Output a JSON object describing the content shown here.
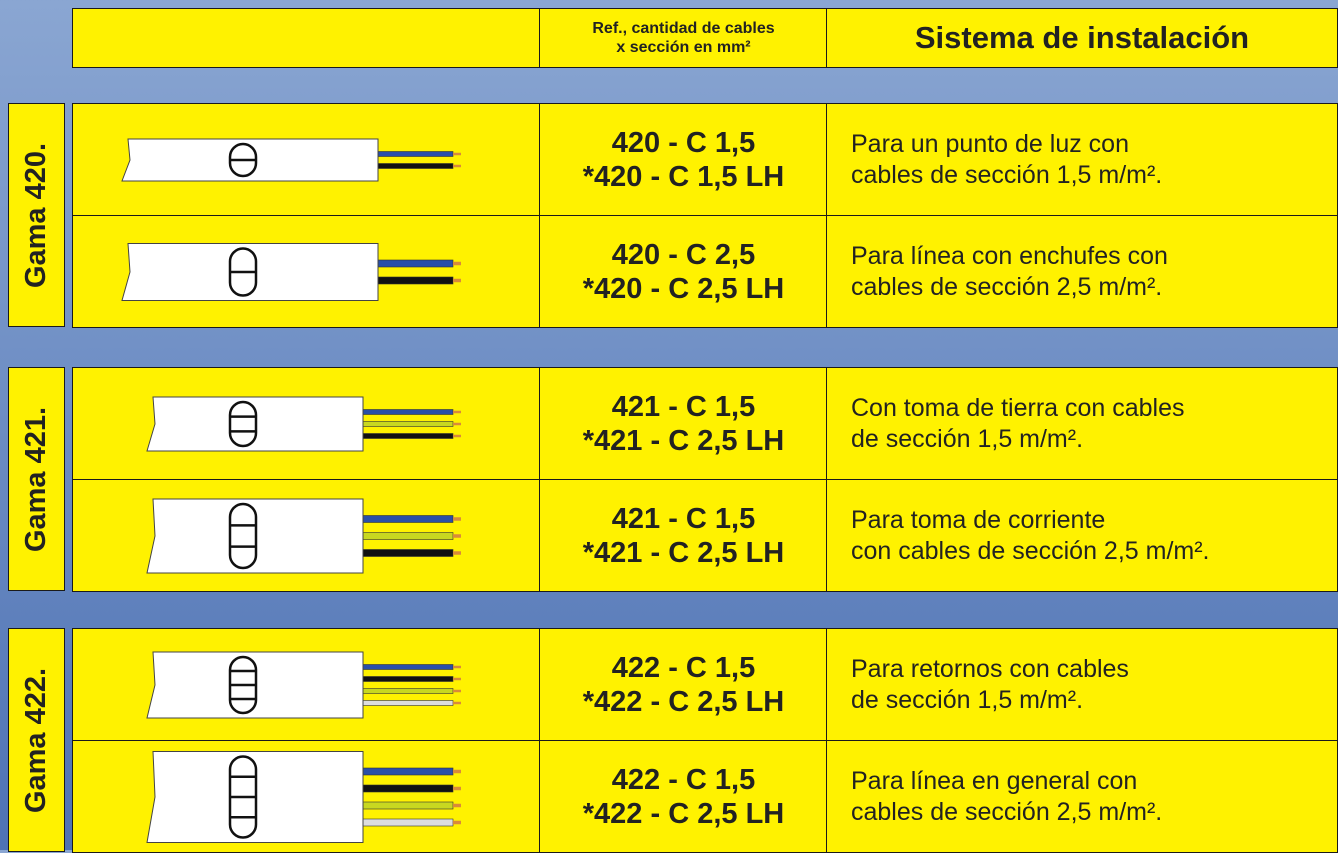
{
  "header": {
    "ref": [
      "Ref., cantidad de cables",
      "x sección en mm²"
    ],
    "system": "Sistema de instalación"
  },
  "groups": [
    {
      "label": "Gama 420.",
      "rows": [
        {
          "refs": [
            "420 - C 1,5",
            "*420 - C 1,5 LH"
          ],
          "description": [
            "Para un punto de luz con",
            "cables de sección 1,5 m/m²."
          ]
        },
        {
          "refs": [
            "420 - C 2,5",
            "*420 - C 2,5 LH"
          ],
          "description": [
            "Para línea con enchufes con",
            "cables de sección 2,5 m/m²."
          ]
        }
      ]
    },
    {
      "label": "Gama 421.",
      "rows": [
        {
          "refs": [
            "421 - C 1,5",
            "*421 - C 2,5 LH"
          ],
          "description": [
            "Con toma de tierra con cables",
            "de sección 1,5 m/m²."
          ]
        },
        {
          "refs": [
            "421 - C 1,5",
            "*421 - C 2,5 LH"
          ],
          "description": [
            "Para toma de corriente",
            "con cables de sección 2,5 m/m²."
          ]
        }
      ]
    },
    {
      "label": "Gama 422.",
      "rows": [
        {
          "refs": [
            "422 - C 1,5",
            "*422 - C 2,5 LH"
          ],
          "description": [
            "Para retornos con cables",
            "de sección 1,5 m/m²."
          ]
        },
        {
          "refs": [
            "422 - C 1,5",
            "*422 - C 2,5 LH"
          ],
          "description": [
            "Para línea en general con",
            "cables de sección 2,5 m/m²."
          ]
        }
      ]
    }
  ]
}
